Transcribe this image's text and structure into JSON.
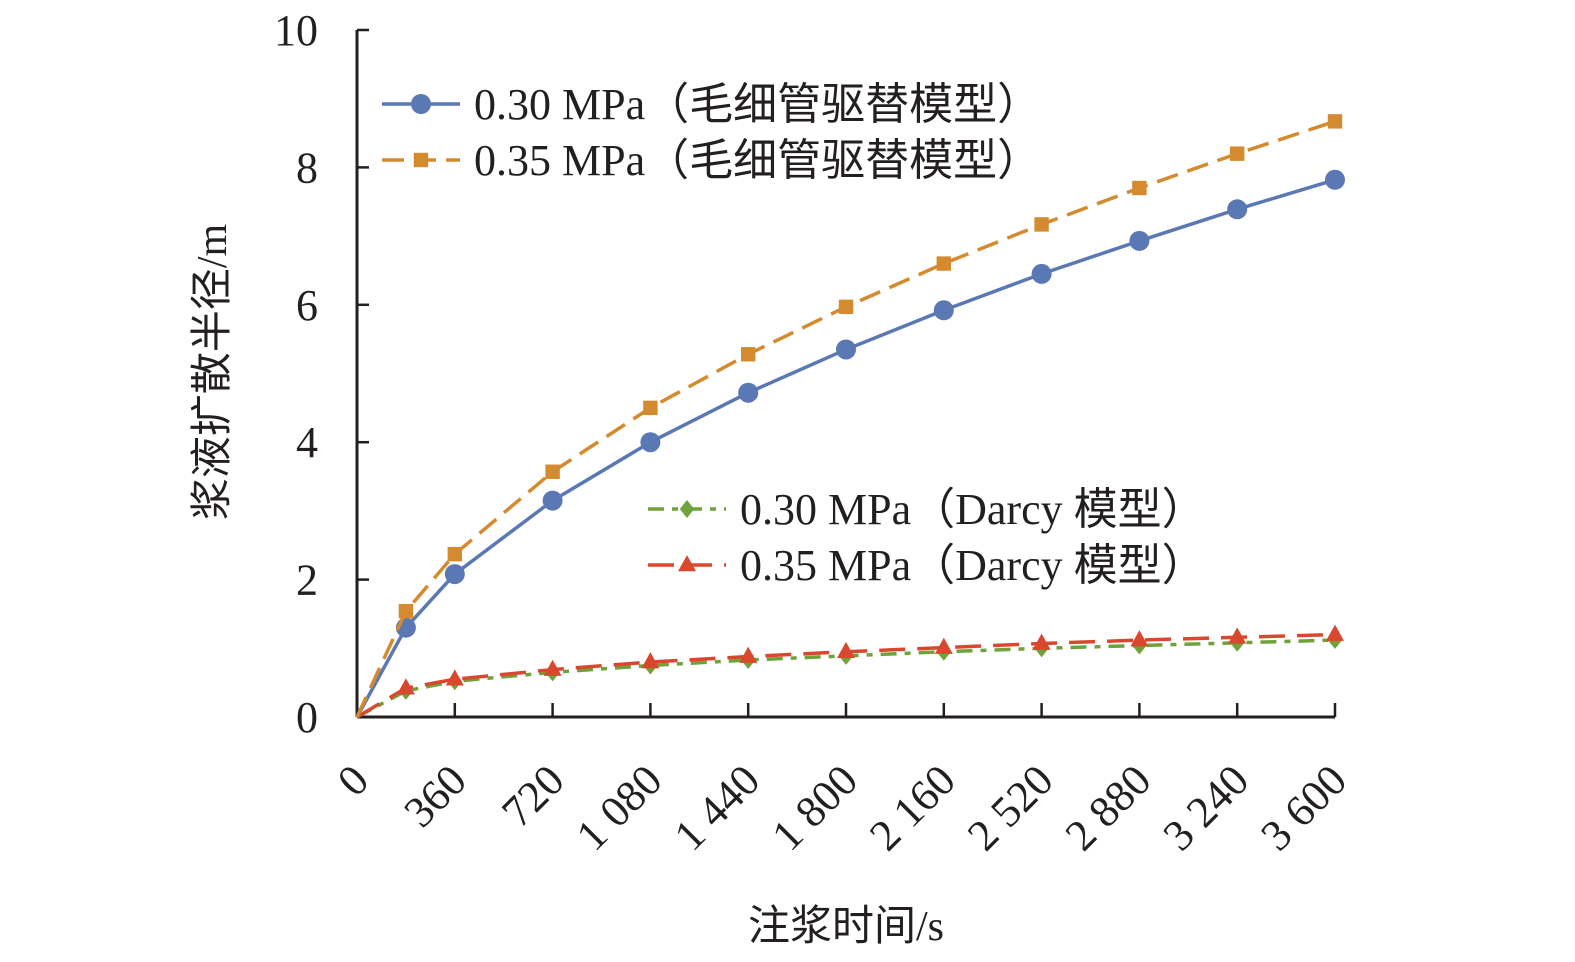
{
  "chart_data": {
    "type": "line",
    "title": "",
    "xlabel": "注浆时间/s",
    "ylabel": "浆液扩散半径/m",
    "xlim": [
      0,
      3600
    ],
    "ylim": [
      0,
      10
    ],
    "x_ticks": [
      0,
      360,
      720,
      1080,
      1440,
      1800,
      2160,
      2520,
      2880,
      3240,
      3600
    ],
    "x_tick_labels": [
      "0",
      "360",
      "720",
      "1 080",
      "1 440",
      "1 800",
      "2 160",
      "2 520",
      "2 880",
      "3 240",
      "3 600"
    ],
    "y_ticks": [
      0,
      2,
      4,
      6,
      8,
      10
    ],
    "y_tick_labels": [
      "0",
      "2",
      "4",
      "6",
      "8",
      "10"
    ],
    "grid": false,
    "x": [
      0,
      180,
      360,
      720,
      1080,
      1440,
      1800,
      2160,
      2520,
      2880,
      3240,
      3600
    ],
    "series": [
      {
        "name": "0.30 MPa（毛细管驱替模型）",
        "color": "#5a78b4",
        "marker": "circle",
        "dash": "solid",
        "values": [
          0,
          1.3,
          2.08,
          3.15,
          4.0,
          4.72,
          5.35,
          5.92,
          6.45,
          6.93,
          7.39,
          7.82
        ]
      },
      {
        "name": "0.35 MPa（毛细管驱替模型）",
        "color": "#d48a2e",
        "marker": "square",
        "dash": "dash",
        "values": [
          0,
          1.54,
          2.37,
          3.57,
          4.5,
          5.28,
          5.97,
          6.6,
          7.17,
          7.7,
          8.2,
          8.67
        ]
      },
      {
        "name": "0.30 MPa（Darcy 模型）",
        "color": "#6fa23a",
        "marker": "diamond",
        "dash": "dashdot",
        "values": [
          0,
          0.38,
          0.52,
          0.65,
          0.75,
          0.83,
          0.89,
          0.95,
          1.0,
          1.04,
          1.08,
          1.12
        ]
      },
      {
        "name": "0.35 MPa（Darcy 模型）",
        "color": "#d9482e",
        "marker": "triangle",
        "dash": "longdash",
        "values": [
          0,
          0.42,
          0.55,
          0.69,
          0.8,
          0.88,
          0.95,
          1.01,
          1.07,
          1.12,
          1.16,
          1.2
        ]
      }
    ],
    "legends": [
      {
        "placement": "top-left",
        "series_indices": [
          0,
          1
        ]
      },
      {
        "placement": "center-right",
        "series_indices": [
          2,
          3
        ]
      }
    ]
  }
}
